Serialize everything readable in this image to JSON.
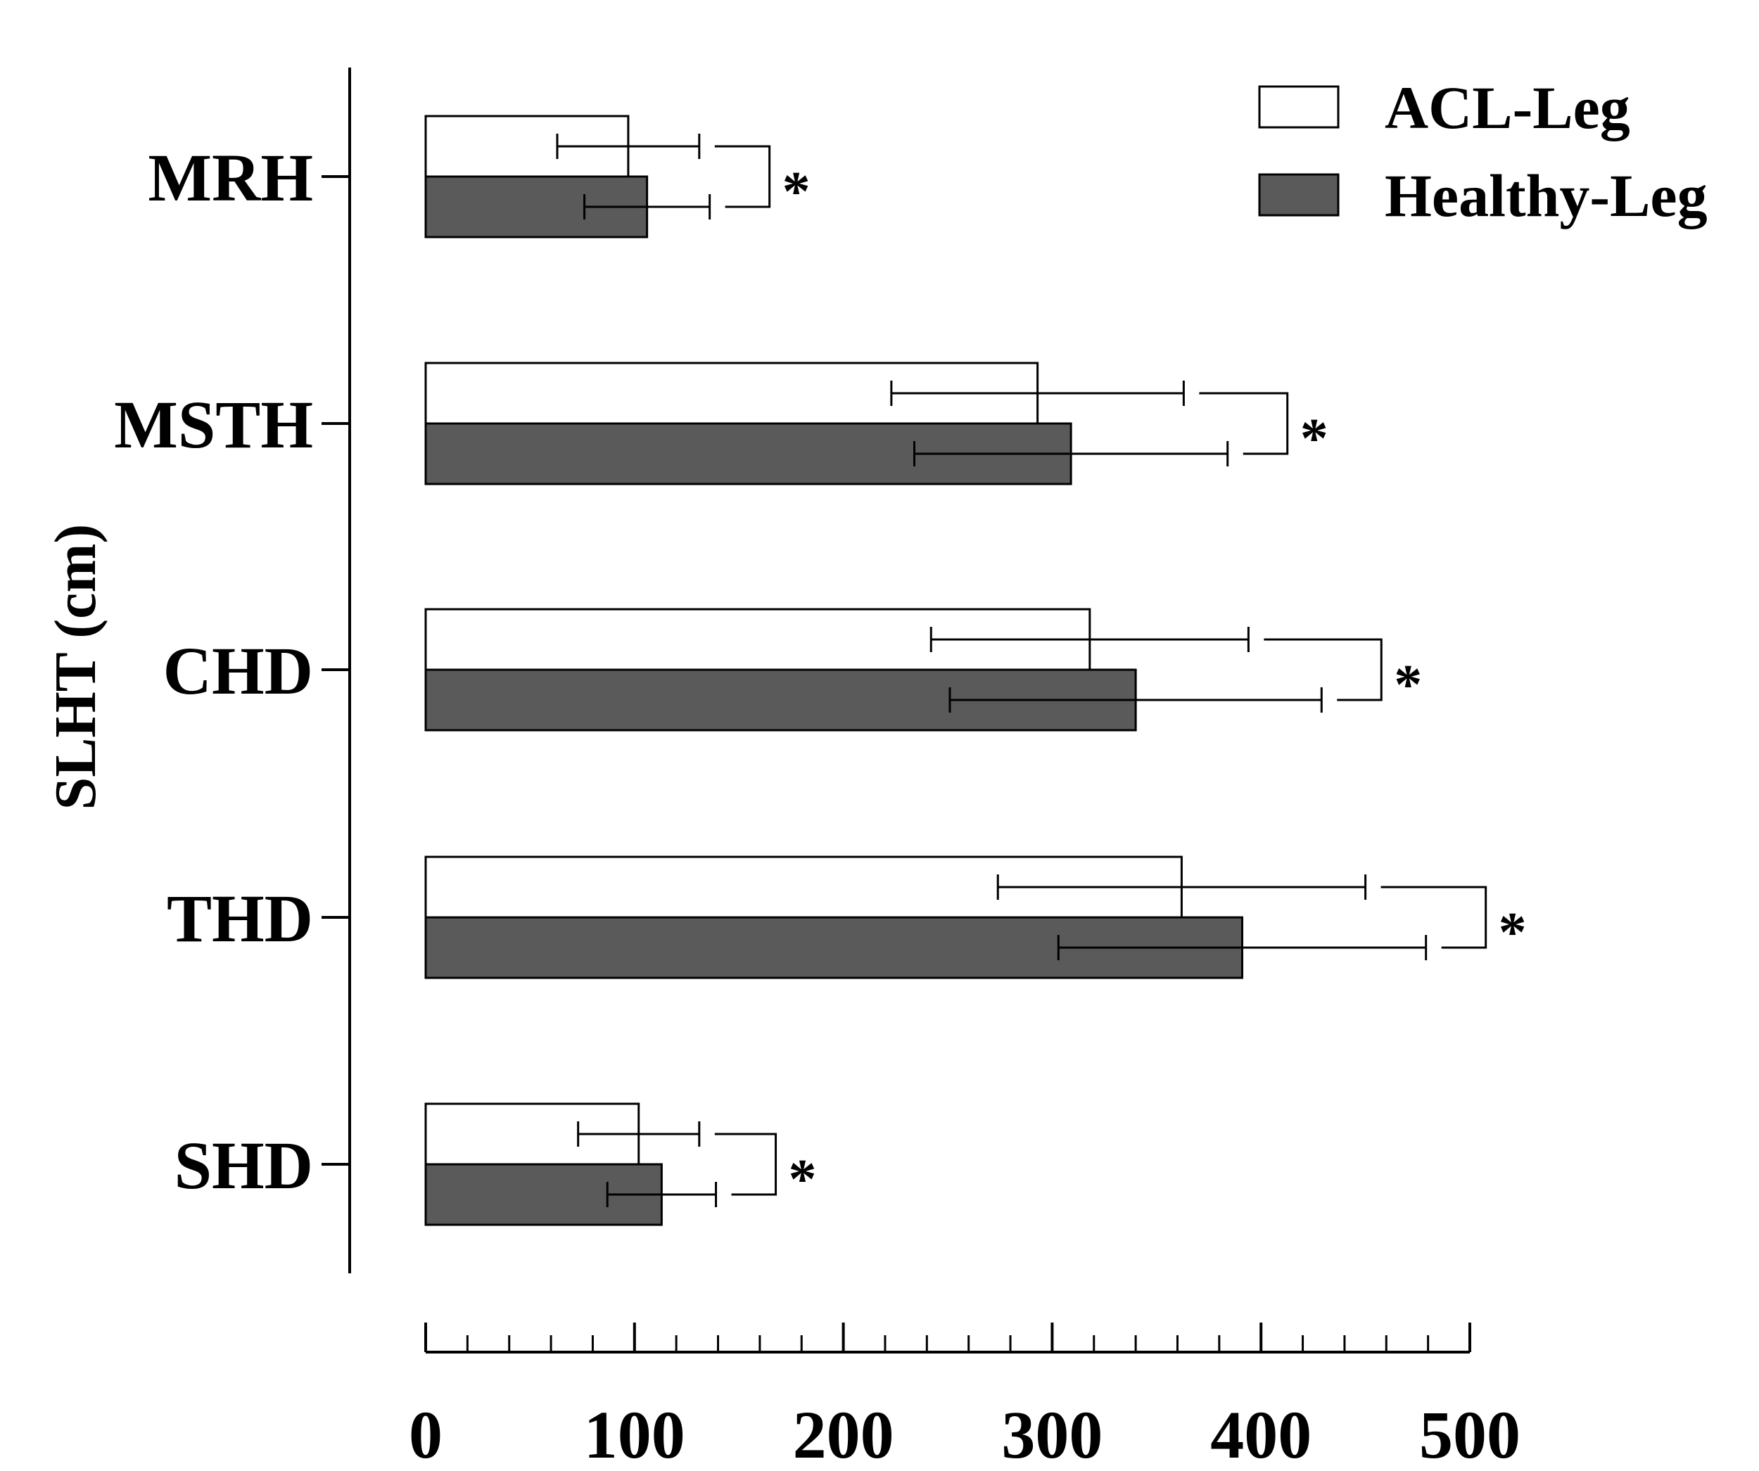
{
  "chart_data": {
    "type": "bar",
    "orientation": "horizontal",
    "title": "",
    "xlabel": "",
    "ylabel": "SLHT (cm)",
    "xlim": [
      0,
      500
    ],
    "x_ticks": [
      0,
      100,
      200,
      300,
      400,
      500
    ],
    "x_minor_step": 20,
    "grid": false,
    "legend_position": "top-right",
    "categories": [
      "MRH",
      "MSTH",
      "CHD",
      "THD",
      "SHD"
    ],
    "series": [
      {
        "name": "ACL-Leg",
        "color": "#ffffff",
        "values": [
          97,
          293,
          318,
          362,
          102
        ],
        "error": [
          34,
          70,
          76,
          88,
          29
        ]
      },
      {
        "name": "Healthy-Leg",
        "color": "#5a5a5a",
        "values": [
          106,
          309,
          340,
          391,
          113
        ],
        "error": [
          30,
          75,
          89,
          88,
          26
        ]
      }
    ],
    "significance": [
      {
        "category": "MRH",
        "label": "*"
      },
      {
        "category": "MSTH",
        "label": "*"
      },
      {
        "category": "CHD",
        "label": "*"
      },
      {
        "category": "THD",
        "label": "*"
      },
      {
        "category": "SHD",
        "label": "*"
      }
    ]
  }
}
